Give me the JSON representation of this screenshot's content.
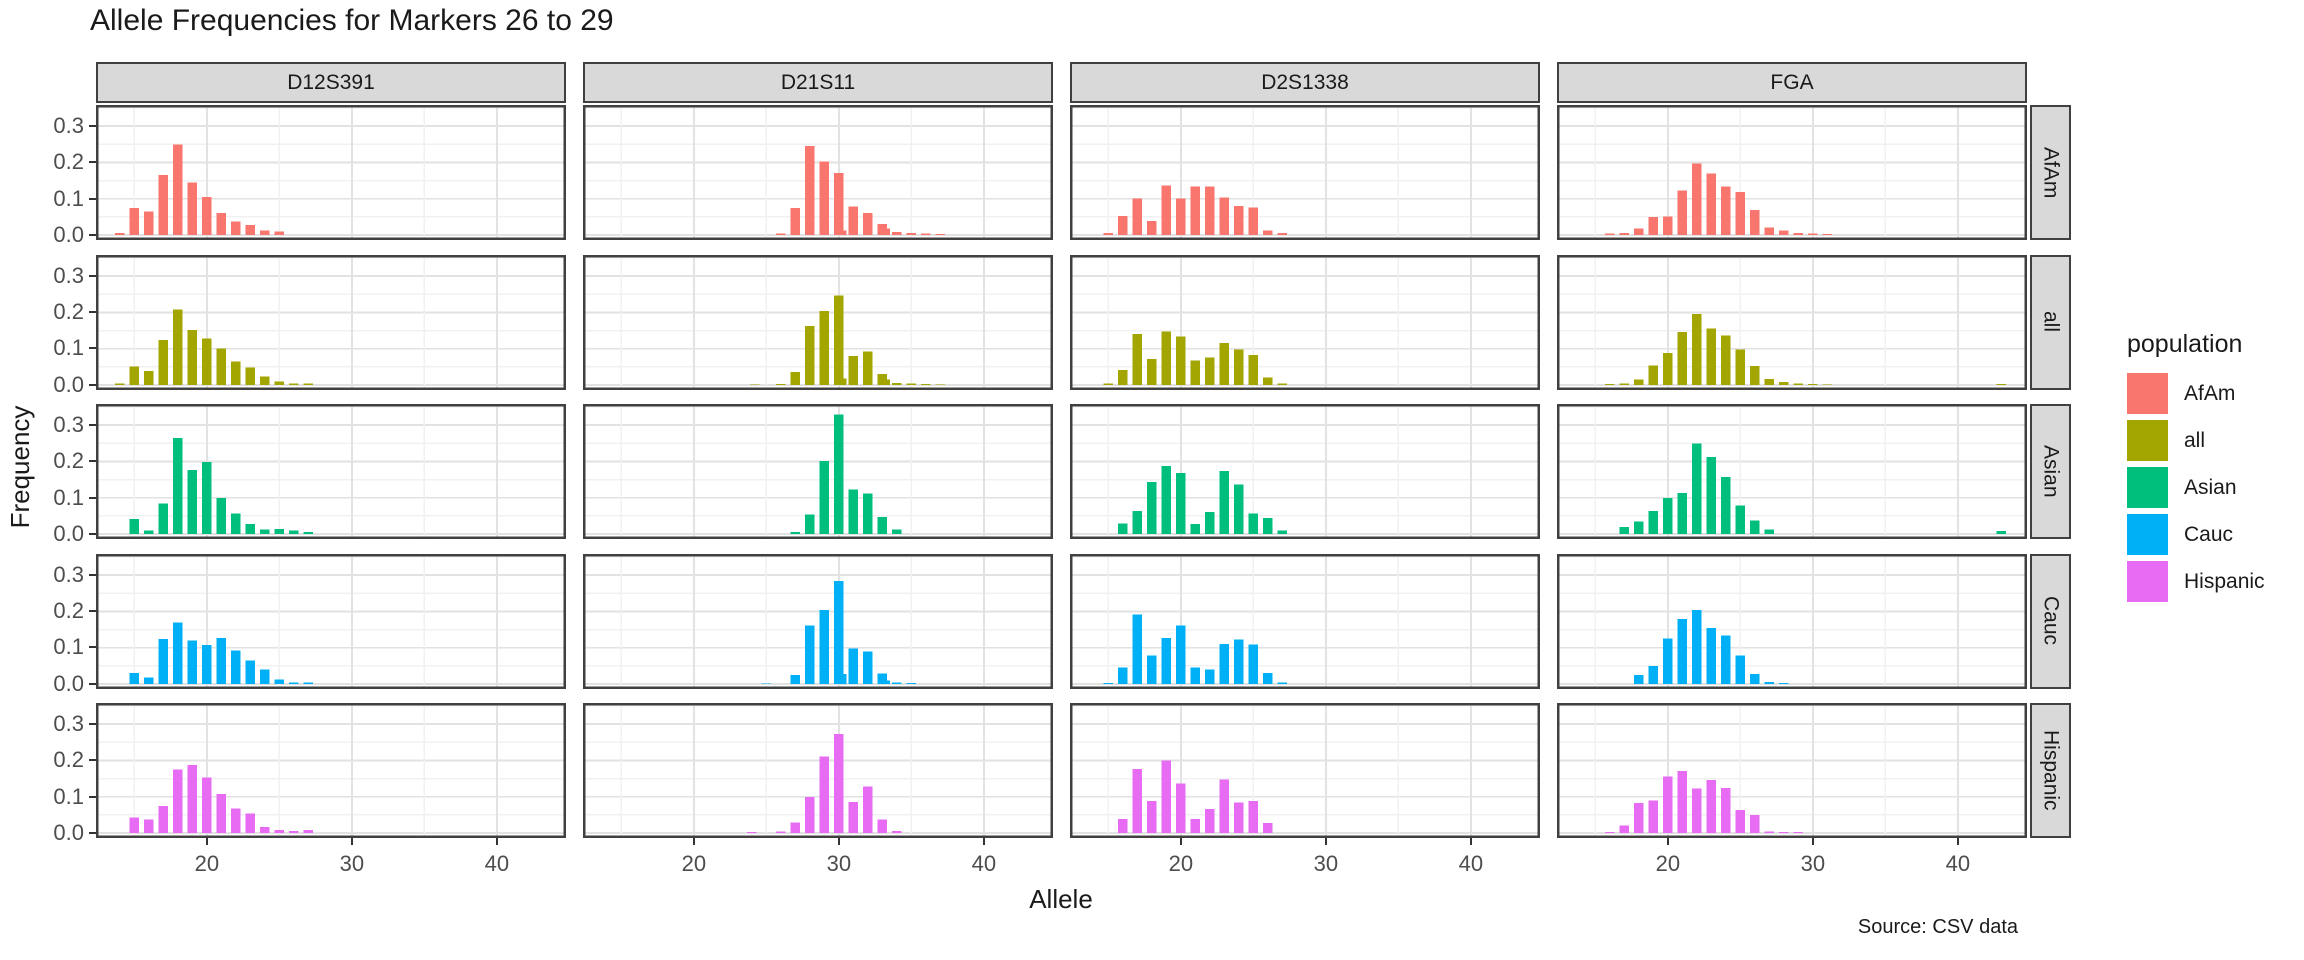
{
  "title": "Allele Frequencies for Markers 26 to 29",
  "caption": "Source: CSV data",
  "axes": {
    "x_title": "Allele",
    "y_title": "Frequency",
    "x_tick_labels": [
      "20",
      "30",
      "40"
    ],
    "y_tick_labels": [
      "0.0",
      "0.1",
      "0.2",
      "0.3"
    ]
  },
  "legend": {
    "title": "population",
    "items": [
      {
        "label": "AfAm",
        "color": "#F8766D"
      },
      {
        "label": "all",
        "color": "#A3A500"
      },
      {
        "label": "Asian",
        "color": "#00BF7D"
      },
      {
        "label": "Cauc",
        "color": "#00B0F6"
      },
      {
        "label": "Hispanic",
        "color": "#E76BF3"
      }
    ]
  },
  "chart_data": {
    "type": "bar",
    "title": "Allele Frequencies for Markers 26 to 29",
    "xlabel": "Allele",
    "ylabel": "Frequency",
    "facet_columns": [
      "D12S391",
      "D21S11",
      "D2S1338",
      "FGA"
    ],
    "facet_rows": [
      "AfAm",
      "all",
      "Asian",
      "Cauc",
      "Hispanic"
    ],
    "legend_position": "right",
    "grid": true,
    "x_tick_values": [
      20,
      30,
      40
    ],
    "y_tick_values": [
      0,
      0.1,
      0.2,
      0.3
    ],
    "x_range": [
      12.35,
      44.8
    ],
    "y_range": [
      0,
      0.36
    ],
    "strip_background": "#D9D9D9",
    "colors": {
      "AfAm": "#F8766D",
      "all": "#A3A500",
      "Asian": "#00BF7D",
      "Cauc": "#00B0F6",
      "Hispanic": "#E76BF3"
    },
    "panels": [
      {
        "marker": "D12S391",
        "population": "AfAm",
        "bars": [
          [
            14,
            0.005
          ],
          [
            15,
            0.075
          ],
          [
            16,
            0.065
          ],
          [
            17,
            0.165
          ],
          [
            18,
            0.25
          ],
          [
            19,
            0.145
          ],
          [
            20,
            0.105
          ],
          [
            21,
            0.06
          ],
          [
            22,
            0.037
          ],
          [
            23,
            0.028
          ],
          [
            24,
            0.013
          ],
          [
            25,
            0.009
          ]
        ]
      },
      {
        "marker": "D12S391",
        "population": "all",
        "bars": [
          [
            14,
            0.004
          ],
          [
            15,
            0.051
          ],
          [
            16,
            0.039
          ],
          [
            17,
            0.124
          ],
          [
            18,
            0.208
          ],
          [
            19,
            0.151
          ],
          [
            20,
            0.128
          ],
          [
            21,
            0.1
          ],
          [
            22,
            0.065
          ],
          [
            23,
            0.048
          ],
          [
            24,
            0.023
          ],
          [
            25,
            0.01
          ],
          [
            26,
            0.004
          ],
          [
            27,
            0.004
          ]
        ]
      },
      {
        "marker": "D12S391",
        "population": "Asian",
        "bars": [
          [
            15,
            0.042
          ],
          [
            16,
            0.009
          ],
          [
            17,
            0.084
          ],
          [
            18,
            0.264
          ],
          [
            19,
            0.177
          ],
          [
            20,
            0.198
          ],
          [
            21,
            0.099
          ],
          [
            22,
            0.056
          ],
          [
            23,
            0.027
          ],
          [
            24,
            0.012
          ],
          [
            25,
            0.014
          ],
          [
            26,
            0.01
          ],
          [
            27,
            0.006
          ]
        ]
      },
      {
        "marker": "D12S391",
        "population": "Cauc",
        "bars": [
          [
            15,
            0.03
          ],
          [
            16,
            0.018
          ],
          [
            17,
            0.124
          ],
          [
            18,
            0.17
          ],
          [
            19,
            0.12
          ],
          [
            20,
            0.107
          ],
          [
            21,
            0.127
          ],
          [
            22,
            0.092
          ],
          [
            23,
            0.065
          ],
          [
            24,
            0.04
          ],
          [
            25,
            0.012
          ],
          [
            26,
            0.004
          ],
          [
            27,
            0.004
          ]
        ]
      },
      {
        "marker": "D12S391",
        "population": "Hispanic",
        "bars": [
          [
            15,
            0.043
          ],
          [
            16,
            0.037
          ],
          [
            17,
            0.074
          ],
          [
            18,
            0.175
          ],
          [
            19,
            0.187
          ],
          [
            20,
            0.153
          ],
          [
            21,
            0.107
          ],
          [
            22,
            0.067
          ],
          [
            23,
            0.054
          ],
          [
            24,
            0.016
          ],
          [
            25,
            0.008
          ],
          [
            26,
            0.006
          ],
          [
            27,
            0.008
          ]
        ]
      },
      {
        "marker": "D21S11",
        "population": "AfAm",
        "bars": [
          [
            26,
            0.004
          ],
          [
            27,
            0.075
          ],
          [
            28,
            0.245
          ],
          [
            29,
            0.203
          ],
          [
            30,
            0.171
          ],
          [
            30.2,
            0.013
          ],
          [
            31,
            0.078
          ],
          [
            32,
            0.06
          ],
          [
            33,
            0.03
          ],
          [
            33.2,
            0.018
          ],
          [
            34,
            0.008
          ],
          [
            35,
            0.005
          ],
          [
            36,
            0.004
          ],
          [
            37,
            0.003
          ]
        ]
      },
      {
        "marker": "D21S11",
        "population": "all",
        "bars": [
          [
            24.2,
            0.002
          ],
          [
            26,
            0.003
          ],
          [
            27,
            0.036
          ],
          [
            28,
            0.163
          ],
          [
            29,
            0.204
          ],
          [
            30,
            0.247
          ],
          [
            30.2,
            0.018
          ],
          [
            31,
            0.08
          ],
          [
            32,
            0.092
          ],
          [
            33,
            0.031
          ],
          [
            33.2,
            0.015
          ],
          [
            34,
            0.006
          ],
          [
            35,
            0.004
          ],
          [
            36,
            0.003
          ],
          [
            37,
            0.002
          ]
        ]
      },
      {
        "marker": "D21S11",
        "population": "Asian",
        "bars": [
          [
            27,
            0.005
          ],
          [
            28,
            0.054
          ],
          [
            29,
            0.201
          ],
          [
            30,
            0.329
          ],
          [
            31,
            0.123
          ],
          [
            32,
            0.112
          ],
          [
            33,
            0.047
          ],
          [
            34,
            0.012
          ]
        ]
      },
      {
        "marker": "D21S11",
        "population": "Cauc",
        "bars": [
          [
            25,
            0.002
          ],
          [
            27,
            0.025
          ],
          [
            28,
            0.161
          ],
          [
            29,
            0.204
          ],
          [
            30,
            0.284
          ],
          [
            30.2,
            0.028
          ],
          [
            31,
            0.098
          ],
          [
            32,
            0.089
          ],
          [
            33,
            0.029
          ],
          [
            33.2,
            0.01
          ],
          [
            34,
            0.004
          ],
          [
            35,
            0.003
          ]
        ]
      },
      {
        "marker": "D21S11",
        "population": "Hispanic",
        "bars": [
          [
            24,
            0.003
          ],
          [
            26,
            0.004
          ],
          [
            27,
            0.029
          ],
          [
            28,
            0.099
          ],
          [
            29,
            0.211
          ],
          [
            30,
            0.273
          ],
          [
            31,
            0.086
          ],
          [
            32,
            0.128
          ],
          [
            33,
            0.037
          ],
          [
            34,
            0.005
          ]
        ]
      },
      {
        "marker": "D2S1338",
        "population": "AfAm",
        "bars": [
          [
            15,
            0.005
          ],
          [
            16,
            0.052
          ],
          [
            17,
            0.1
          ],
          [
            18,
            0.038
          ],
          [
            19,
            0.136
          ],
          [
            20,
            0.101
          ],
          [
            21,
            0.133
          ],
          [
            22,
            0.134
          ],
          [
            23,
            0.103
          ],
          [
            24,
            0.08
          ],
          [
            25,
            0.076
          ],
          [
            26,
            0.013
          ],
          [
            27,
            0.005
          ]
        ]
      },
      {
        "marker": "D2S1338",
        "population": "all",
        "bars": [
          [
            15,
            0.004
          ],
          [
            16,
            0.042
          ],
          [
            17,
            0.141
          ],
          [
            18,
            0.071
          ],
          [
            19,
            0.147
          ],
          [
            20,
            0.133
          ],
          [
            21,
            0.068
          ],
          [
            22,
            0.076
          ],
          [
            23,
            0.116
          ],
          [
            24,
            0.098
          ],
          [
            25,
            0.083
          ],
          [
            26,
            0.021
          ],
          [
            27,
            0.004
          ]
        ]
      },
      {
        "marker": "D2S1338",
        "population": "Asian",
        "bars": [
          [
            16,
            0.029
          ],
          [
            17,
            0.063
          ],
          [
            18,
            0.143
          ],
          [
            19,
            0.187
          ],
          [
            20,
            0.168
          ],
          [
            21,
            0.027
          ],
          [
            22,
            0.06
          ],
          [
            23,
            0.174
          ],
          [
            24,
            0.136
          ],
          [
            25,
            0.056
          ],
          [
            26,
            0.044
          ],
          [
            27,
            0.009
          ]
        ]
      },
      {
        "marker": "D2S1338",
        "population": "Cauc",
        "bars": [
          [
            15,
            0.003
          ],
          [
            16,
            0.045
          ],
          [
            17,
            0.192
          ],
          [
            18,
            0.079
          ],
          [
            19,
            0.127
          ],
          [
            20,
            0.161
          ],
          [
            21,
            0.045
          ],
          [
            22,
            0.04
          ],
          [
            23,
            0.11
          ],
          [
            24,
            0.122
          ],
          [
            25,
            0.109
          ],
          [
            26,
            0.031
          ],
          [
            27,
            0.004
          ]
        ]
      },
      {
        "marker": "D2S1338",
        "population": "Hispanic",
        "bars": [
          [
            16,
            0.038
          ],
          [
            17,
            0.176
          ],
          [
            18,
            0.088
          ],
          [
            19,
            0.2
          ],
          [
            20,
            0.136
          ],
          [
            21,
            0.039
          ],
          [
            22,
            0.066
          ],
          [
            23,
            0.148
          ],
          [
            24,
            0.084
          ],
          [
            25,
            0.088
          ],
          [
            26,
            0.027
          ]
        ]
      },
      {
        "marker": "FGA",
        "population": "AfAm",
        "bars": [
          [
            16,
            0.004
          ],
          [
            17,
            0.005
          ],
          [
            18,
            0.018
          ],
          [
            19,
            0.049
          ],
          [
            20,
            0.051
          ],
          [
            21,
            0.122
          ],
          [
            22,
            0.197
          ],
          [
            23,
            0.169
          ],
          [
            24,
            0.133
          ],
          [
            25,
            0.119
          ],
          [
            26,
            0.069
          ],
          [
            27,
            0.02
          ],
          [
            28,
            0.013
          ],
          [
            29,
            0.005
          ],
          [
            30,
            0.004
          ],
          [
            31,
            0.003
          ]
        ]
      },
      {
        "marker": "FGA",
        "population": "all",
        "bars": [
          [
            16,
            0.003
          ],
          [
            17,
            0.004
          ],
          [
            18,
            0.015
          ],
          [
            19,
            0.054
          ],
          [
            20,
            0.088
          ],
          [
            21,
            0.146
          ],
          [
            22,
            0.195
          ],
          [
            23,
            0.156
          ],
          [
            24,
            0.136
          ],
          [
            25,
            0.098
          ],
          [
            26,
            0.052
          ],
          [
            27,
            0.017
          ],
          [
            28,
            0.008
          ],
          [
            29,
            0.004
          ],
          [
            30,
            0.003
          ],
          [
            31,
            0.002
          ],
          [
            43,
            0.003
          ]
        ]
      },
      {
        "marker": "FGA",
        "population": "Asian",
        "bars": [
          [
            17,
            0.019
          ],
          [
            18,
            0.034
          ],
          [
            19,
            0.063
          ],
          [
            20,
            0.099
          ],
          [
            21,
            0.113
          ],
          [
            22,
            0.249
          ],
          [
            23,
            0.212
          ],
          [
            24,
            0.157
          ],
          [
            25,
            0.079
          ],
          [
            26,
            0.037
          ],
          [
            27,
            0.013
          ],
          [
            43,
            0.008
          ]
        ]
      },
      {
        "marker": "FGA",
        "population": "Cauc",
        "bars": [
          [
            18,
            0.025
          ],
          [
            19,
            0.049
          ],
          [
            20,
            0.125
          ],
          [
            21,
            0.179
          ],
          [
            22,
            0.204
          ],
          [
            23,
            0.154
          ],
          [
            24,
            0.134
          ],
          [
            25,
            0.079
          ],
          [
            26,
            0.027
          ],
          [
            27,
            0.005
          ],
          [
            28,
            0.003
          ]
        ]
      },
      {
        "marker": "FGA",
        "population": "Hispanic",
        "bars": [
          [
            16,
            0.003
          ],
          [
            17,
            0.02
          ],
          [
            18,
            0.083
          ],
          [
            19,
            0.089
          ],
          [
            20,
            0.156
          ],
          [
            21,
            0.171
          ],
          [
            22,
            0.123
          ],
          [
            23,
            0.146
          ],
          [
            24,
            0.124
          ],
          [
            25,
            0.064
          ],
          [
            26,
            0.049
          ],
          [
            27,
            0.004
          ],
          [
            28,
            0.003
          ],
          [
            29,
            0.003
          ]
        ]
      }
    ]
  }
}
